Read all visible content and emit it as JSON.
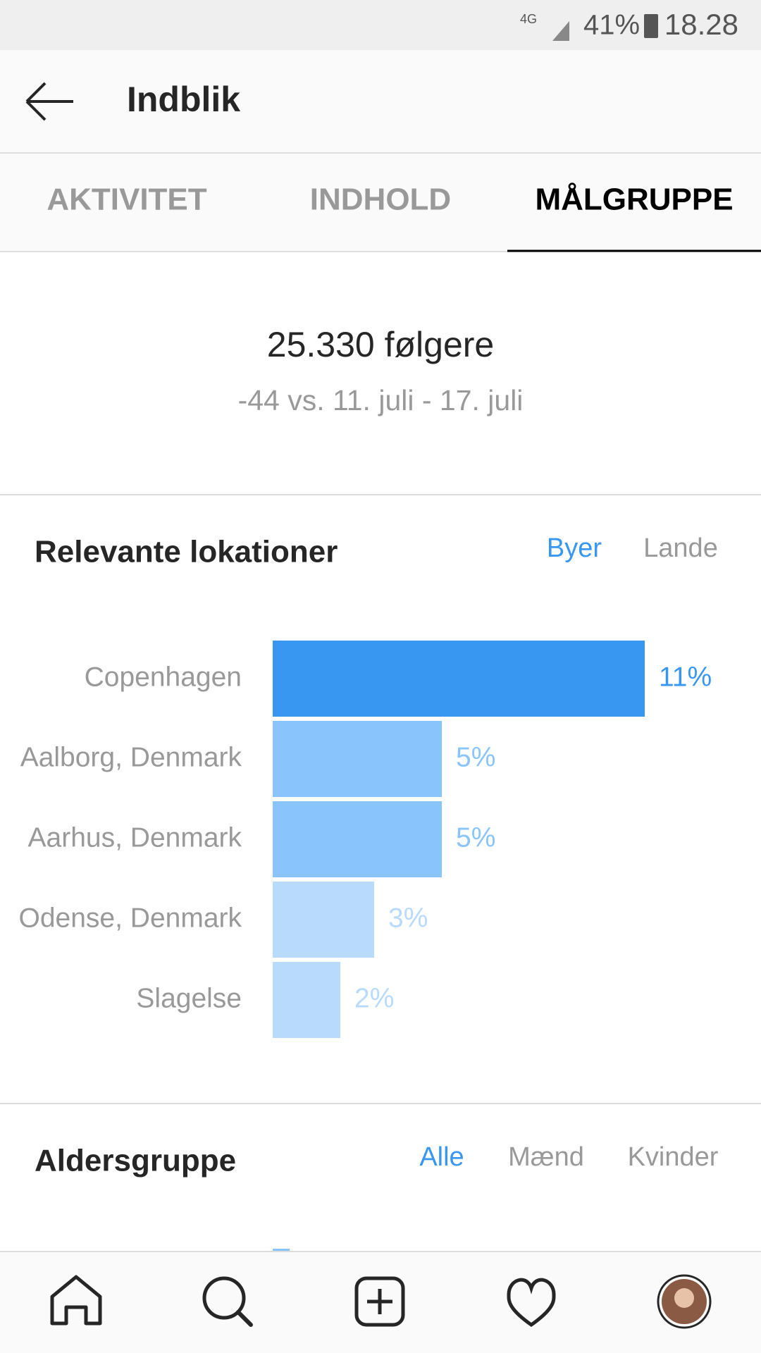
{
  "status_bar": {
    "network": "4G",
    "battery": "41%",
    "time": "18.28"
  },
  "header": {
    "title": "Indblik"
  },
  "tabs": [
    "AKTIVITET",
    "INDHOLD",
    "MÅLGRUPPE"
  ],
  "summary": {
    "followers": "25.330 følgere",
    "change": "-44 vs. 11. juli - 17. juli"
  },
  "locations": {
    "title": "Relevante lokationer",
    "filters": [
      "Byer",
      "Lande"
    ],
    "chart_data": {
      "type": "bar",
      "categories": [
        "Copenhagen",
        "Aalborg, Denmark",
        "Aarhus, Denmark",
        "Odense, Denmark",
        "Slagelse"
      ],
      "values": [
        11,
        5,
        5,
        3,
        2
      ],
      "value_labels": [
        "11%",
        "5%",
        "5%",
        "3%",
        "2%"
      ],
      "colors": [
        "#3897f0",
        "#8ac4fc",
        "#8ac4fc",
        "#b8dafd",
        "#b8dafd"
      ]
    }
  },
  "age": {
    "title": "Aldersgruppe",
    "filters": [
      "Alle",
      "Mænd",
      "Kvinder"
    ]
  }
}
